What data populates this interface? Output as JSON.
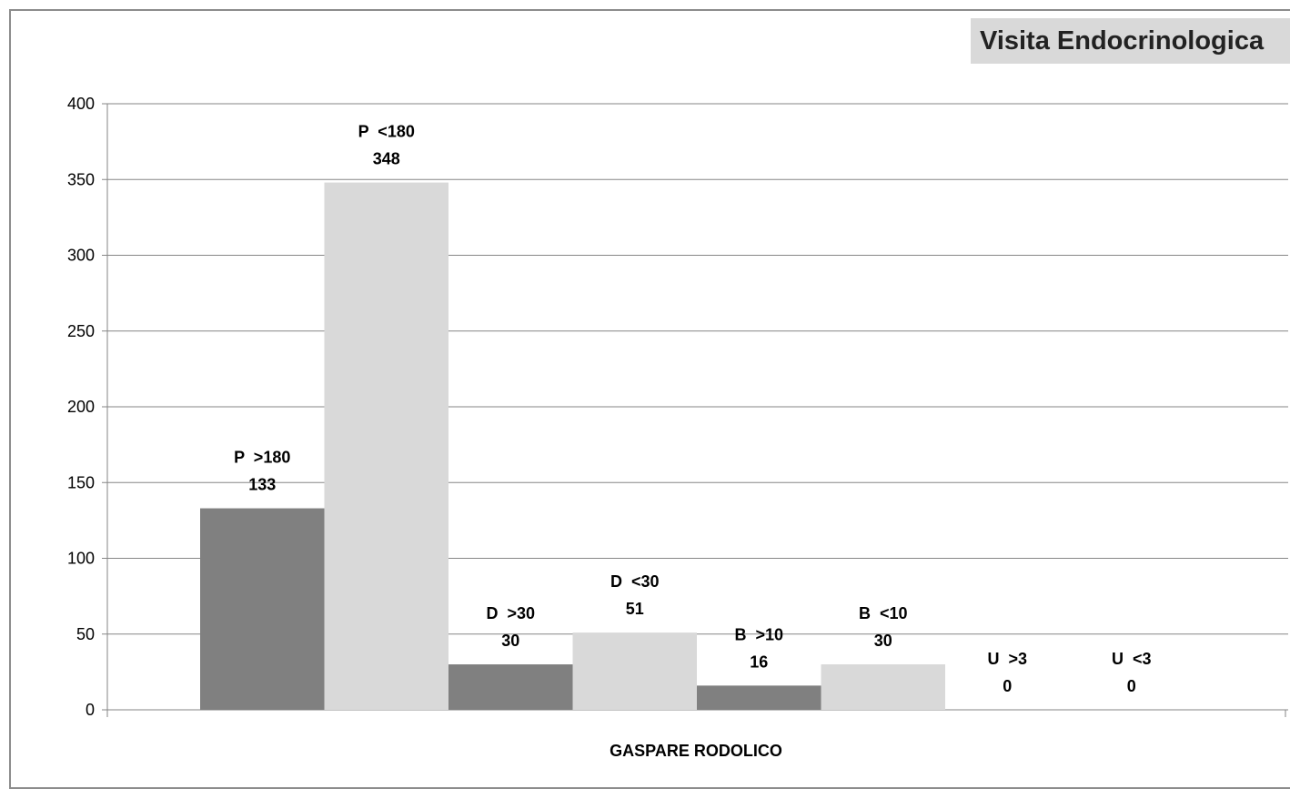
{
  "chart_data": {
    "type": "bar",
    "title": "Visita Endocrinologica",
    "xlabel": "GASPARE RODOLICO",
    "ylabel": "",
    "ylim": [
      0,
      400
    ],
    "yticks": [
      0,
      50,
      100,
      150,
      200,
      250,
      300,
      350,
      400
    ],
    "grid": true,
    "legend": "none",
    "categories": [
      "P >180",
      "P <180",
      "D >30",
      "D <30",
      "B >10",
      "B <10",
      "U >3",
      "U <3"
    ],
    "values": [
      133,
      348,
      30,
      51,
      16,
      30,
      0,
      0
    ],
    "label_names": [
      "P  >180",
      "P  <180",
      "D  >30",
      "D  <30",
      "B  >10",
      "B  <10",
      "U  >3",
      "U  <3"
    ],
    "label_values": [
      "133",
      "348",
      "30",
      "51",
      "16",
      "30",
      "0",
      "0"
    ],
    "colors": [
      "#808080",
      "#d9d9d9",
      "#808080",
      "#d9d9d9",
      "#808080",
      "#d9d9d9",
      "#808080",
      "#d9d9d9"
    ],
    "gridline_color": "#868686",
    "axis_color": "#868686"
  }
}
